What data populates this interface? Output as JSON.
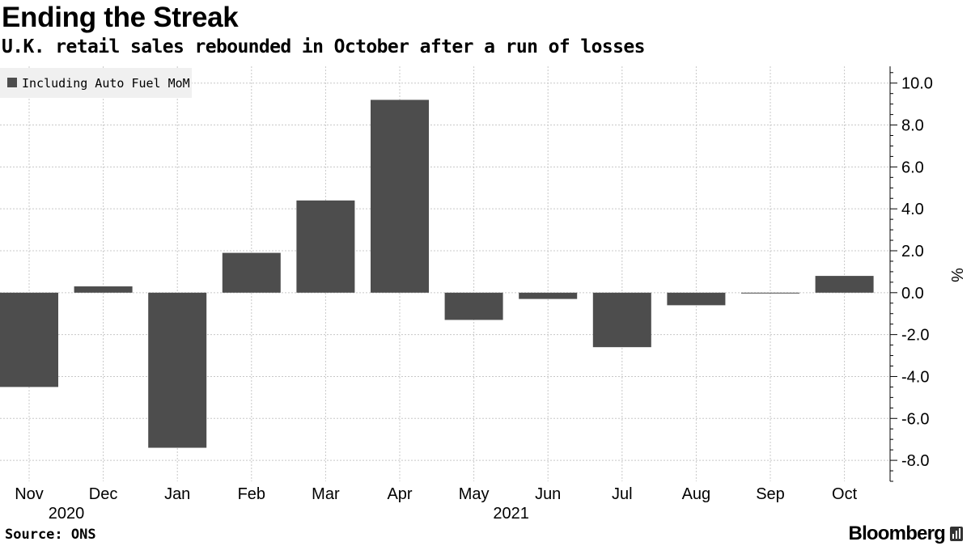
{
  "title": "Ending the Streak",
  "subtitle": "U.K. retail sales rebounded in October after a run of losses",
  "source": "Source: ONS",
  "brand": "Bloomberg",
  "colors": {
    "bar": "#4d4d4d",
    "grid": "#c8c8c8",
    "legend_bg": "#f0f0f0"
  },
  "chart_data": {
    "type": "bar",
    "title": "Ending the Streak",
    "subtitle": "U.K. retail sales rebounded in October after a run of losses",
    "categories": [
      "Nov",
      "Dec",
      "Jan",
      "Feb",
      "Mar",
      "Apr",
      "May",
      "Jun",
      "Jul",
      "Aug",
      "Sep",
      "Oct"
    ],
    "year_labels": [
      {
        "label": "2020",
        "category": "Nov"
      },
      {
        "label": "2021",
        "category": "May"
      }
    ],
    "series": [
      {
        "name": "Including Auto Fuel MoM",
        "values": [
          -4.5,
          0.3,
          -7.4,
          1.9,
          4.4,
          9.2,
          -1.3,
          -0.3,
          -2.6,
          -0.6,
          0.0,
          0.8
        ]
      }
    ],
    "ylabel": "%",
    "xlabel": "",
    "ylim": [
      -9.0,
      10.8
    ],
    "yticks": [
      10.0,
      8.0,
      6.0,
      4.0,
      2.0,
      0.0,
      -2.0,
      -4.0,
      -6.0,
      -8.0
    ],
    "ytick_labels": [
      "10.0",
      "8.0",
      "6.0",
      "4.0",
      "2.0",
      "0.0",
      "-2.0",
      "-4.0",
      "-6.0",
      "-8.0"
    ],
    "grid": true,
    "legend_position": "top-left",
    "axis_position": "right"
  }
}
